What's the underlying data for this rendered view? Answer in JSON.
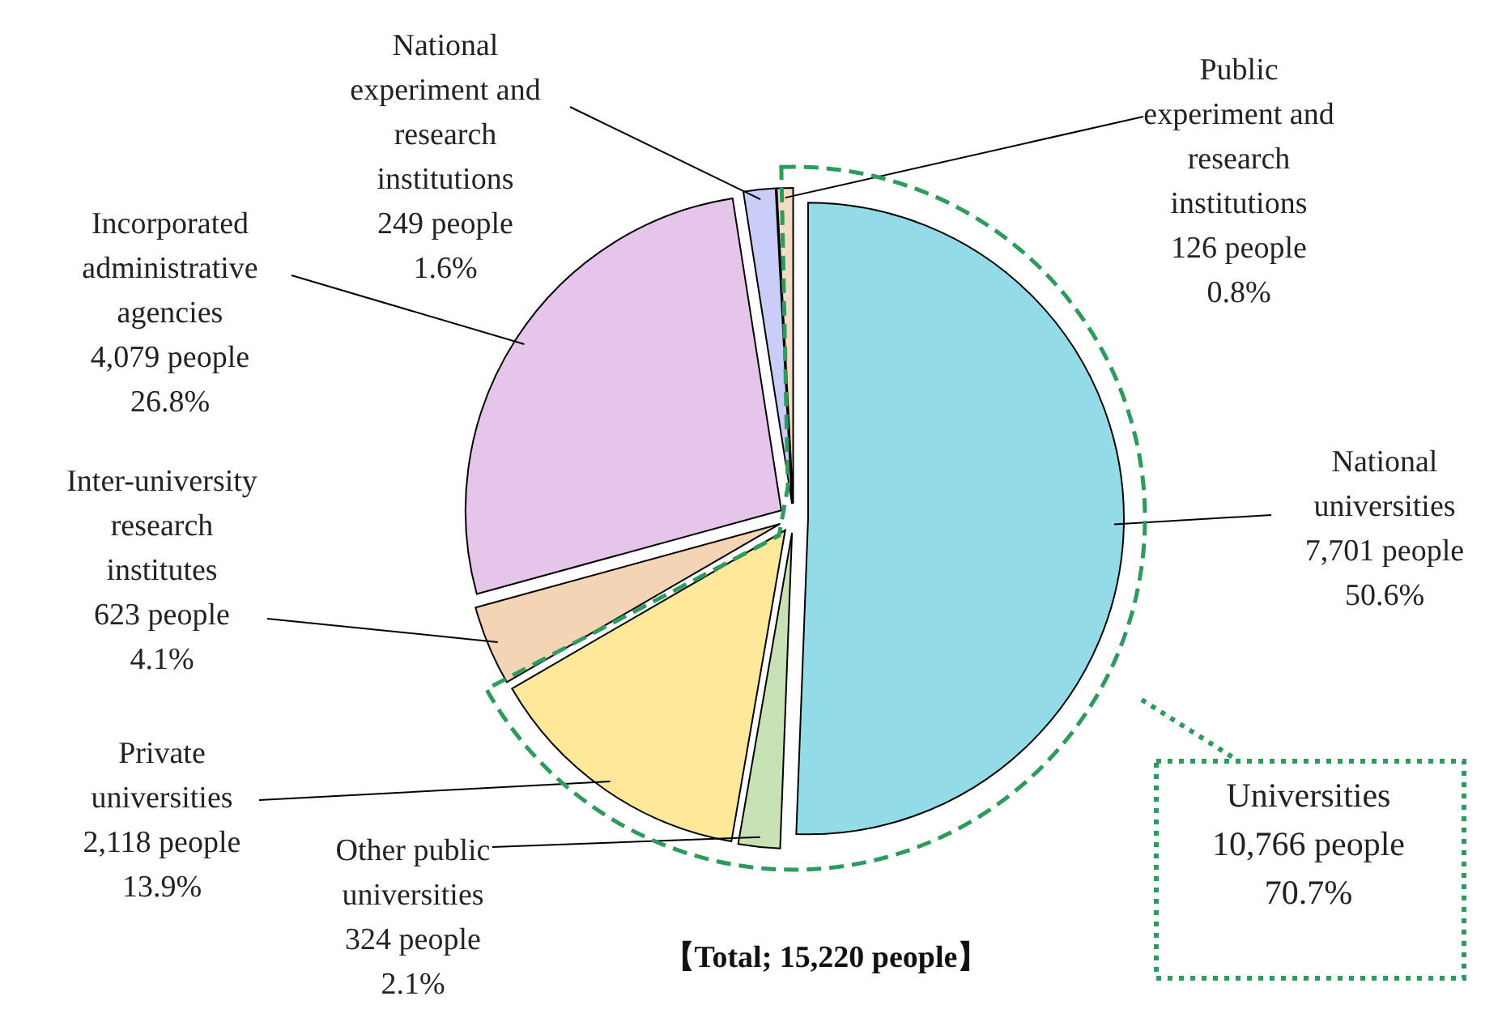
{
  "chart_data": {
    "type": "pie",
    "categories": [
      "National universities",
      "Other public universities",
      "Private universities",
      "Inter-university research institutes",
      "Incorporated administrative agencies",
      "National experiment and research institutions",
      "Public experiment and research institutions"
    ],
    "values": [
      7701,
      324,
      2118,
      623,
      4079,
      249,
      126
    ],
    "value_labels": [
      "7,701 people\n50.6%",
      "324 people\n2.1%",
      "2,118 people\n13.9%",
      "623 people\n4.1%",
      "4,079 people\n26.8%",
      "249 people\n1.6%",
      "126 people\n0.8%"
    ],
    "colors": [
      "#94dbe8",
      "#c9e2b5",
      "#ffe89a",
      "#f3d5b5",
      "#e6c5ea",
      "#c9cdf7",
      "#f2dcc6"
    ],
    "annotations": [
      "Universities\n10,766 people\n70.7%",
      "【Total; 15,220 people】"
    ]
  }
}
